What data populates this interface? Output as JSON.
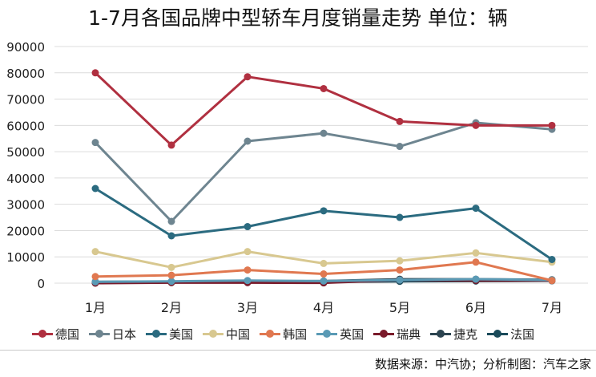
{
  "chart_data": {
    "type": "line",
    "title": "1-7月各国品牌中型轿车月度销量走势  单位：辆",
    "categories": [
      "1月",
      "2月",
      "3月",
      "4月",
      "5月",
      "6月",
      "7月"
    ],
    "ylim": [
      0,
      90000
    ],
    "yticks": [
      0,
      10000,
      20000,
      30000,
      40000,
      50000,
      60000,
      70000,
      80000,
      90000
    ],
    "grid": true,
    "legend_position": "bottom",
    "series": [
      {
        "name": "德国",
        "color": "#b03040",
        "values": [
          80000,
          52500,
          78500,
          74000,
          61500,
          60000,
          60000
        ]
      },
      {
        "name": "日本",
        "color": "#6e8590",
        "values": [
          53500,
          23500,
          54000,
          57000,
          52000,
          61000,
          58500
        ]
      },
      {
        "name": "美国",
        "color": "#2b6b80",
        "values": [
          36000,
          18000,
          21500,
          27500,
          25000,
          28500,
          9000
        ]
      },
      {
        "name": "中国",
        "color": "#d8c890",
        "values": [
          12000,
          6000,
          12000,
          7500,
          8500,
          11500,
          8000
        ]
      },
      {
        "name": "韩国",
        "color": "#e07850",
        "values": [
          2500,
          3000,
          5000,
          3500,
          5000,
          8000,
          1000
        ]
      },
      {
        "name": "英国",
        "color": "#5a9ab5",
        "values": [
          500,
          700,
          1000,
          800,
          1200,
          1500,
          1200
        ]
      },
      {
        "name": "瑞典",
        "color": "#7a1a2a",
        "values": [
          0,
          200,
          200,
          100,
          1200,
          1000,
          1000
        ]
      },
      {
        "name": "捷克",
        "color": "#2c4450",
        "values": [
          500,
          600,
          700,
          800,
          1500,
          1500,
          1300
        ]
      },
      {
        "name": "法国",
        "color": "#1a4a5a",
        "values": [
          200,
          300,
          400,
          500,
          700,
          800,
          900
        ]
      }
    ]
  },
  "source": "数据来源：中汽协；分析制图：汽车之家"
}
